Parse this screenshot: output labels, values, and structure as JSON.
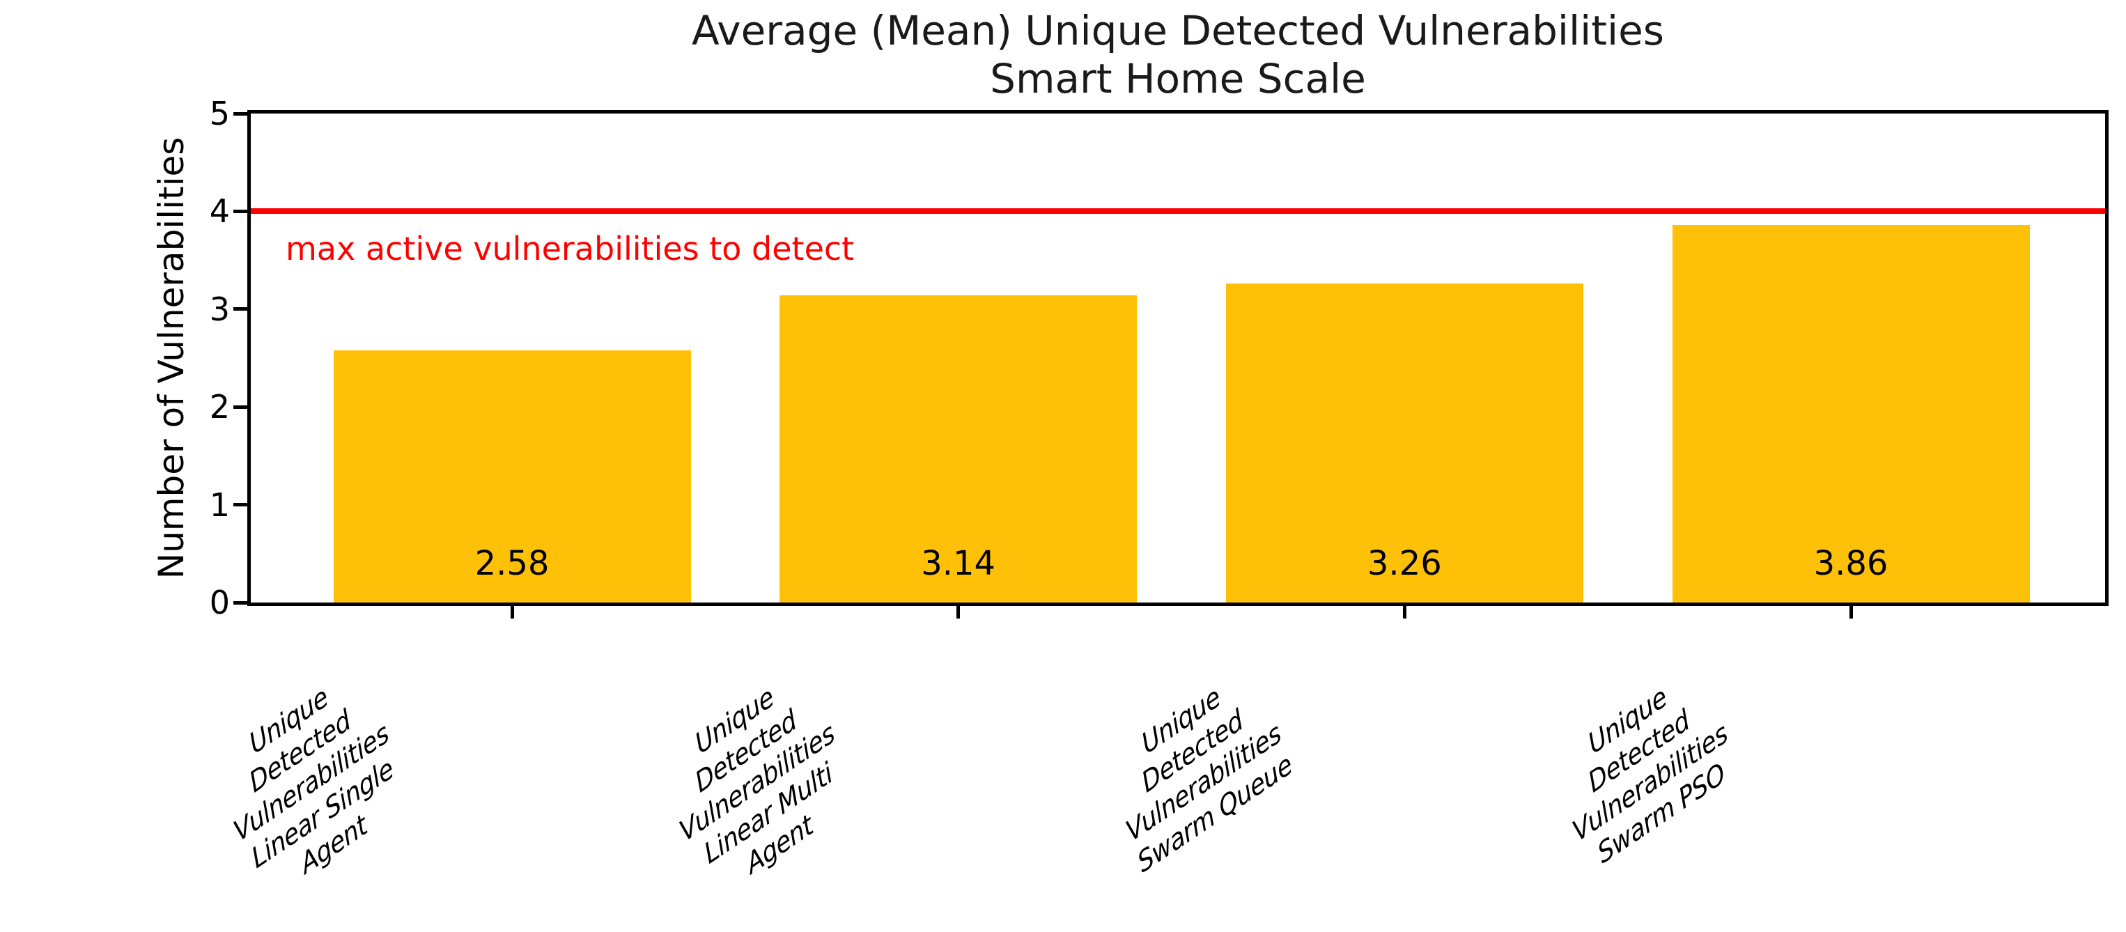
{
  "chart_data": {
    "type": "bar",
    "title": "Average (Mean) Unique Detected Vulnerabilities",
    "subtitle": "Smart Home Scale",
    "categories": [
      "Unique Detected Vulnerabilities\nLinear Single Agent",
      "Unique Detected Vulnerabilities\nLinear Multi Agent",
      "Unique Detected Vulnerabilities\nSwarm Queue",
      "Unique Detected Vulnerabilities\nSwarm PSO"
    ],
    "values": [
      2.58,
      3.14,
      3.26,
      3.86
    ],
    "bar_labels": [
      "2.58",
      "3.14",
      "3.26",
      "3.86"
    ],
    "ylabel": "Number of Vulnerabilities",
    "xlabel": "",
    "ylim": [
      0,
      5
    ],
    "yticks": [
      "0",
      "1",
      "2",
      "3",
      "4",
      "5"
    ],
    "grid": false,
    "legend_position": "none",
    "bar_color": "#FFC107",
    "threshold": {
      "y": 4,
      "label": "max active vulnerabilities to detect",
      "color": "#FF0000"
    },
    "text_color": "#000000",
    "background_color": "#FFFFFF"
  }
}
